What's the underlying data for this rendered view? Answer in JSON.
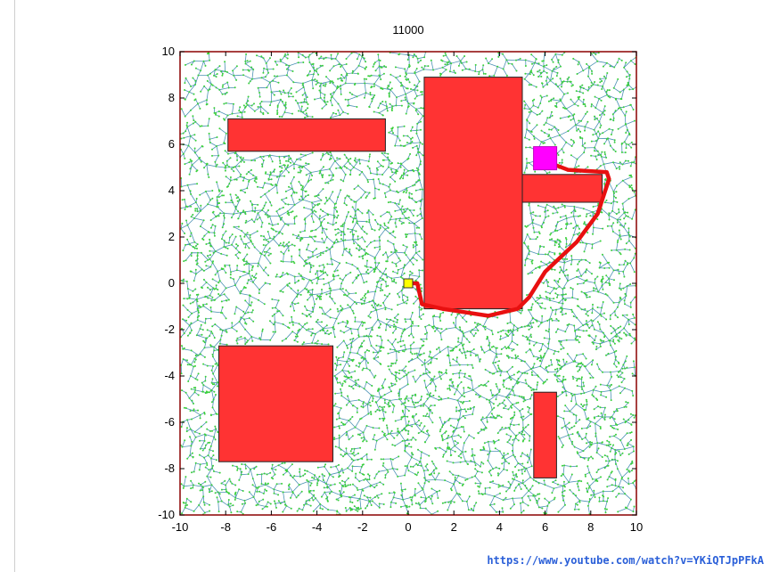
{
  "chart_data": {
    "type": "scatter",
    "title": "11000",
    "xlim": [
      -10,
      10
    ],
    "ylim": [
      -10,
      10
    ],
    "x_ticks": [
      "-10",
      "-8",
      "-6",
      "-4",
      "-2",
      "0",
      "2",
      "4",
      "6",
      "8",
      "10"
    ],
    "y_ticks": [
      "-10",
      "-8",
      "-6",
      "-4",
      "-2",
      "0",
      "2",
      "4",
      "6",
      "8",
      "10"
    ],
    "xlabel": "",
    "ylabel": "",
    "grid": false,
    "start": [
      0,
      0
    ],
    "goal": [
      6,
      5.4
    ],
    "obstacles": [
      {
        "x1": -7.9,
        "y1": 5.7,
        "x2": -1.0,
        "y2": 7.1
      },
      {
        "x1": 0.7,
        "y1": -1.1,
        "x2": 5.0,
        "y2": 8.9
      },
      {
        "x1": 5.0,
        "y1": 3.5,
        "x2": 8.5,
        "y2": 4.7
      },
      {
        "x1": -8.3,
        "y1": -7.7,
        "x2": -3.3,
        "y2": -2.7
      },
      {
        "x1": 5.5,
        "y1": -8.4,
        "x2": 6.5,
        "y2": -4.7
      }
    ],
    "path": [
      [
        0,
        0
      ],
      [
        0.4,
        0
      ],
      [
        0.6,
        -0.9
      ],
      [
        1.5,
        -1.1
      ],
      [
        3.5,
        -1.4
      ],
      [
        4.8,
        -1.1
      ],
      [
        5.3,
        -0.6
      ],
      [
        6.0,
        0.5
      ],
      [
        7.4,
        1.8
      ],
      [
        8.3,
        3.0
      ],
      [
        8.8,
        4.5
      ],
      [
        8.7,
        4.8
      ],
      [
        7.0,
        4.9
      ],
      [
        6.2,
        5.2
      ]
    ],
    "colors": {
      "tree": "#2e7fa8",
      "nodes": "#3bd13b",
      "obstacle": "#ff3333",
      "path": "#e81010",
      "start": "#ffff00",
      "goal": "#ff00ff"
    }
  },
  "footer": {
    "url": "https://www.youtube.com/watch?v=YKiQTJpPFkA"
  }
}
